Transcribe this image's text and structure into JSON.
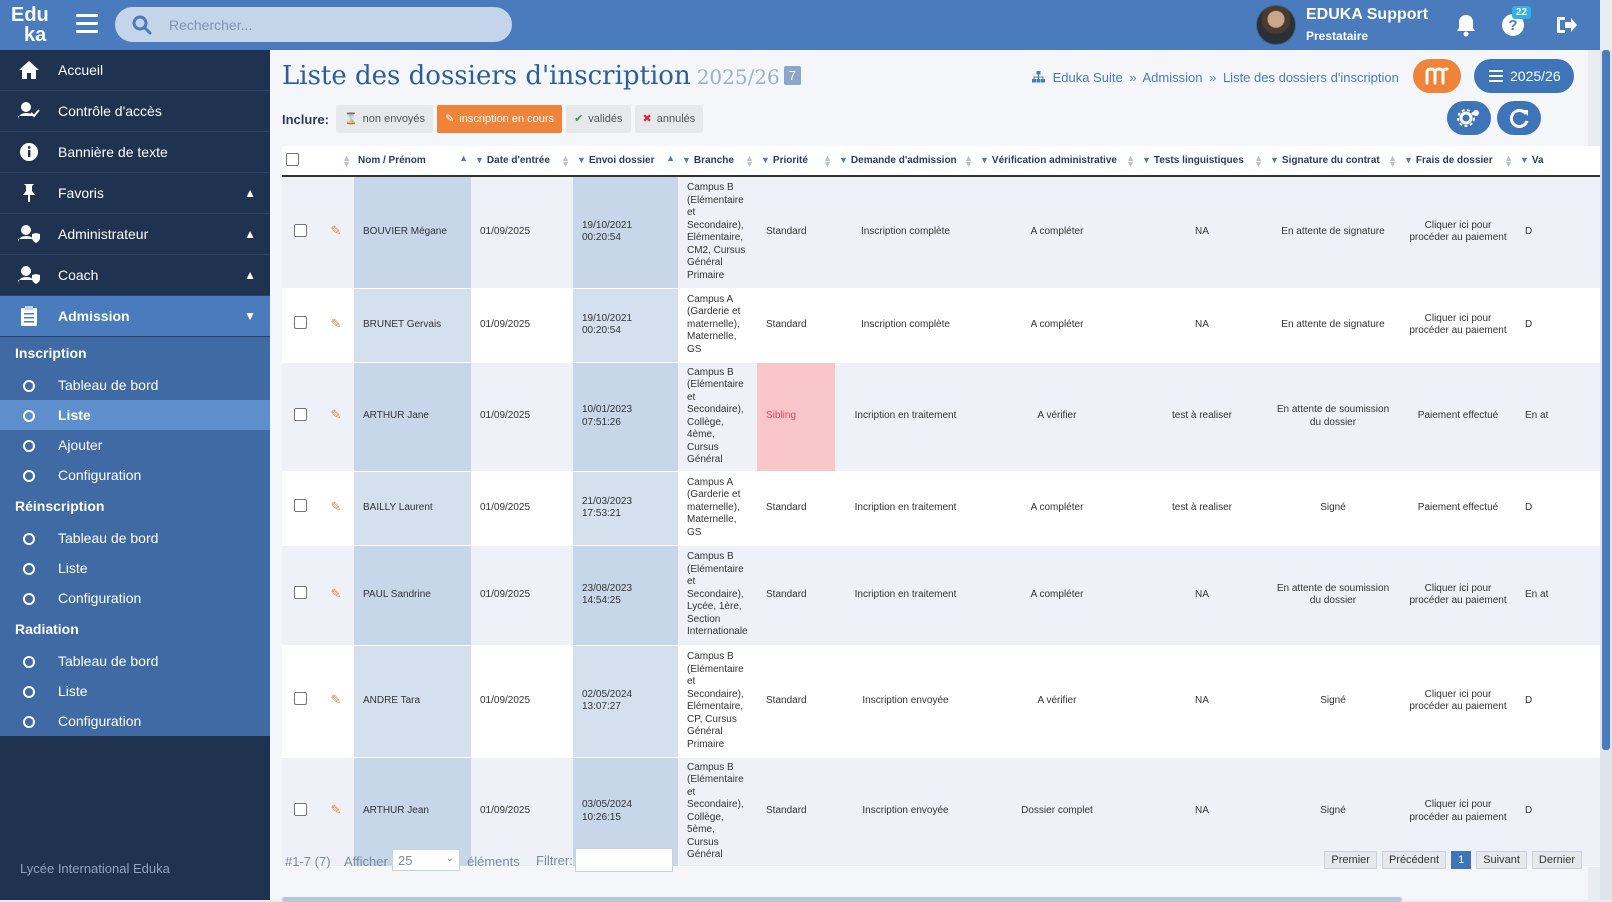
{
  "app": {
    "logo_line1": "Edu",
    "logo_line2": "ka"
  },
  "search": {
    "placeholder": "Rechercher..."
  },
  "user": {
    "name": "EDUKA Support",
    "role": "Prestataire",
    "help_badge": "22"
  },
  "sidebar": {
    "items": [
      {
        "label": "Accueil",
        "icon": "home-icon"
      },
      {
        "label": "Contrôle d'accès",
        "icon": "user-check-icon"
      },
      {
        "label": "Bannière de texte",
        "icon": "info-icon"
      },
      {
        "label": "Favoris",
        "icon": "pin-icon"
      },
      {
        "label": "Administrateur",
        "icon": "user-shield-icon"
      },
      {
        "label": "Coach",
        "icon": "user-shield-icon"
      },
      {
        "label": "Admission",
        "icon": "clipboard-icon"
      }
    ],
    "sections": [
      {
        "title": "Inscription",
        "items": [
          "Tableau de bord",
          "Liste",
          "Ajouter",
          "Configuration"
        ]
      },
      {
        "title": "Réinscription",
        "items": [
          "Tableau de bord",
          "Liste",
          "Configuration"
        ]
      },
      {
        "title": "Radiation",
        "items": [
          "Tableau de bord",
          "Liste",
          "Configuration"
        ]
      }
    ],
    "footer": "Lycée International Eduka"
  },
  "page": {
    "title": "Liste des dossiers d'inscription",
    "year": "2025/26",
    "count": "7",
    "breadcrumb": [
      "Eduka Suite",
      "Admission",
      "Liste des dossiers d'inscription"
    ],
    "breadcrumb_sep": "»",
    "year_button": "2025/26"
  },
  "filters": {
    "label": "Inclure:",
    "chips": [
      {
        "label": "non envoyés",
        "active": false
      },
      {
        "label": "inscription en cours",
        "active": true
      },
      {
        "label": "validés",
        "active": false
      },
      {
        "label": "annulés",
        "active": false
      }
    ]
  },
  "table": {
    "columns": [
      "Nom / Prénom",
      "Date d'entrée",
      "Envoi dossier",
      "Branche",
      "Priorité",
      "Demande d'admission",
      "Vérification administrative",
      "Tests linguistiques",
      "Signature du contrat",
      "Frais de dossier",
      "Va"
    ],
    "rows": [
      {
        "name": "BOUVIER Mégane",
        "entry": "01/09/2025",
        "sent_date": "19/10/2021",
        "sent_time": "00:20:54",
        "branch": "Campus B (Elémentaire et Secondaire), Elémentaire, CM2, Cursus Général Primaire",
        "priority": "Standard",
        "admission": "Inscription complète",
        "verification": "A compléter",
        "tests": "NA",
        "signature": "En attente de signature",
        "fees": "Cliquer ici pour procéder au paiement",
        "va": "D"
      },
      {
        "name": "BRUNET Gervais",
        "entry": "01/09/2025",
        "sent_date": "19/10/2021",
        "sent_time": "00:20:54",
        "branch": "Campus A (Garderie et maternelle), Maternelle, GS",
        "priority": "Standard",
        "admission": "Inscription complète",
        "verification": "A compléter",
        "tests": "NA",
        "signature": "En attente de signature",
        "fees": "Cliquer ici pour procéder au paiement",
        "va": "D"
      },
      {
        "name": "ARTHUR Jane",
        "entry": "01/09/2025",
        "sent_date": "10/01/2023",
        "sent_time": "07:51:26",
        "branch": "Campus B (Elémentaire et Secondaire), Collège, 4ème, Cursus Général",
        "priority": "Sibling",
        "admission": "Incription en traitement",
        "verification": "A vérifier",
        "tests": "test à realiser",
        "signature": "En attente de soumission du dossier",
        "fees": "Paiement effectué",
        "va": "En at"
      },
      {
        "name": "BAILLY Laurent",
        "entry": "01/09/2025",
        "sent_date": "21/03/2023",
        "sent_time": "17:53:21",
        "branch": "Campus A (Garderie et maternelle), Maternelle, GS",
        "priority": "Standard",
        "admission": "Incription en traitement",
        "verification": "A compléter",
        "tests": "test à realiser",
        "signature": "Signé",
        "fees": "Paiement effectué",
        "va": "D"
      },
      {
        "name": "PAUL Sandrine",
        "entry": "01/09/2025",
        "sent_date": "23/08/2023",
        "sent_time": "14:54:25",
        "branch": "Campus B (Elémentaire et Secondaire), Lycée, 1ère, Section Internationale",
        "priority": "Standard",
        "admission": "Incription en traitement",
        "verification": "A compléter",
        "tests": "NA",
        "signature": "En attente de soumission du dossier",
        "fees": "Cliquer ici pour procéder au paiement",
        "va": "En at"
      },
      {
        "name": "ANDRE Tara",
        "entry": "01/09/2025",
        "sent_date": "02/05/2024",
        "sent_time": "13:07:27",
        "branch": "Campus B (Elémentaire et Secondaire), Elémentaire, CP, Cursus Général Primaire",
        "priority": "Standard",
        "admission": "Inscription envoyée",
        "verification": "A vérifier",
        "tests": "NA",
        "signature": "Signé",
        "fees": "Cliquer ici pour procéder au paiement",
        "va": "D"
      },
      {
        "name": "ARTHUR Jean",
        "entry": "01/09/2025",
        "sent_date": "03/05/2024",
        "sent_time": "10:26:15",
        "branch": "Campus B (Elémentaire et Secondaire), Collège, 5ème, Cursus Général",
        "priority": "Standard",
        "admission": "Inscription envoyée",
        "verification": "Dossier complet",
        "tests": "NA",
        "signature": "Signé",
        "fees": "Cliquer ici pour procéder au paiement",
        "va": "D"
      }
    ]
  },
  "footer": {
    "info": "#1-7 (7)",
    "show_label": "Afficher",
    "page_size": "25",
    "elements_label": "éléments",
    "filter_label": "Filtrer:",
    "pager": [
      "Premier",
      "Précédent",
      "1",
      "Suivant",
      "Dernier"
    ]
  },
  "colors": {
    "brand": "#4a7cbd",
    "sidebar": "#1f3350",
    "accent": "#f0833a",
    "sibling": "#f8c6c9"
  }
}
